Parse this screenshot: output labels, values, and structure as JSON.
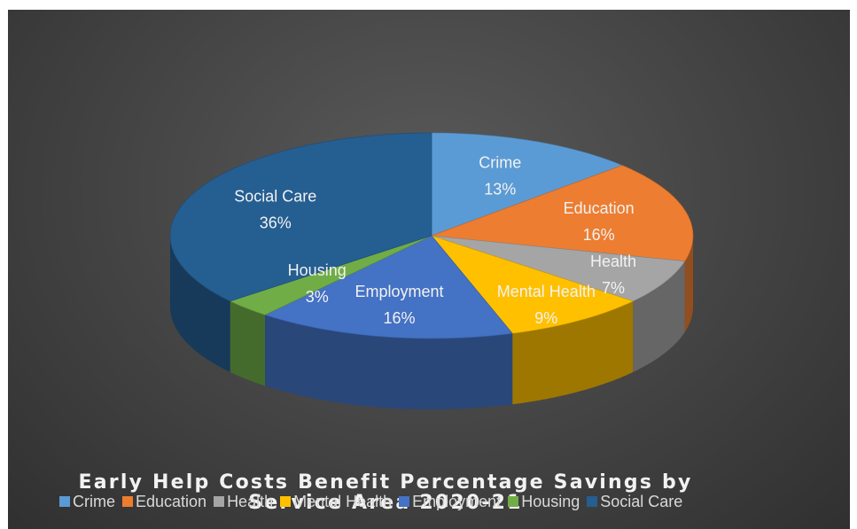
{
  "chart_data": {
    "type": "pie",
    "title": "Early Help Costs Benefit Percentage Savings by Service Area 2020-21",
    "title_lines": [
      "Early Help Costs Benefit Percentage Savings by",
      "Service Area 2020-21"
    ],
    "slices": [
      {
        "label": "Crime",
        "value": 13,
        "value_label": "13%",
        "color": "#5b9bd5"
      },
      {
        "label": "Education",
        "value": 16,
        "value_label": "16%",
        "color": "#ed7d31"
      },
      {
        "label": "Health",
        "value": 7,
        "value_label": "7%",
        "color": "#a5a5a5"
      },
      {
        "label": "Mental Health",
        "value": 9,
        "value_label": "9%",
        "color": "#ffc000"
      },
      {
        "label": "Employment",
        "value": 16,
        "value_label": "16%",
        "color": "#4472c4"
      },
      {
        "label": "Housing",
        "value": 3,
        "value_label": "3%",
        "color": "#70ad47"
      },
      {
        "label": "Social Care",
        "value": 36,
        "value_label": "36%",
        "color": "#255e91"
      }
    ],
    "legend_position": "bottom",
    "style": "3d-pie",
    "background": "#404040"
  }
}
